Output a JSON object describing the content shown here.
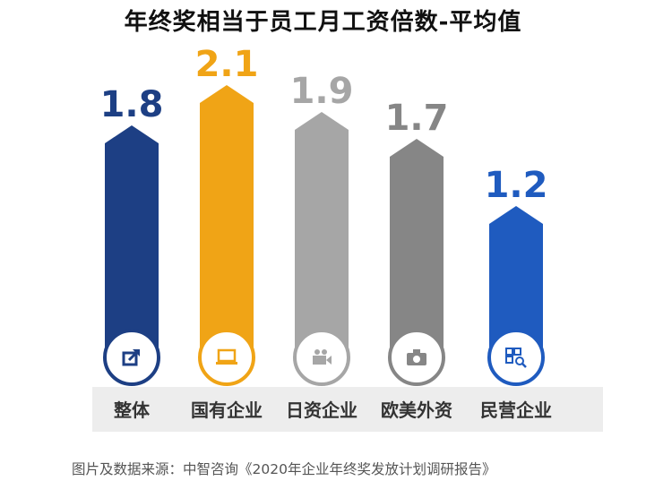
{
  "title": "年终奖相当于员工月工资倍数-平均值",
  "source": "图片及数据来源：中智咨询《2020年企业年终奖发放计划调研报告》",
  "chart_data": {
    "type": "bar",
    "title": "年终奖相当于员工月工资倍数-平均值",
    "categories": [
      "整体",
      "国有企业",
      "日资企业",
      "欧美外资",
      "民营企业"
    ],
    "values": [
      1.8,
      2.1,
      1.9,
      1.7,
      1.2
    ],
    "value_labels": [
      "1.8",
      "2.1",
      "1.9",
      "1.7",
      "1.2"
    ],
    "colors": [
      "#1d3f84",
      "#f0a416",
      "#a6a6a6",
      "#868686",
      "#1f5bbf"
    ],
    "icons": [
      "share-icon",
      "laptop-icon",
      "video-camera-icon",
      "camera-icon",
      "qr-search-icon"
    ],
    "xlabel": "",
    "ylabel": "",
    "grid": false,
    "legend": "none"
  }
}
